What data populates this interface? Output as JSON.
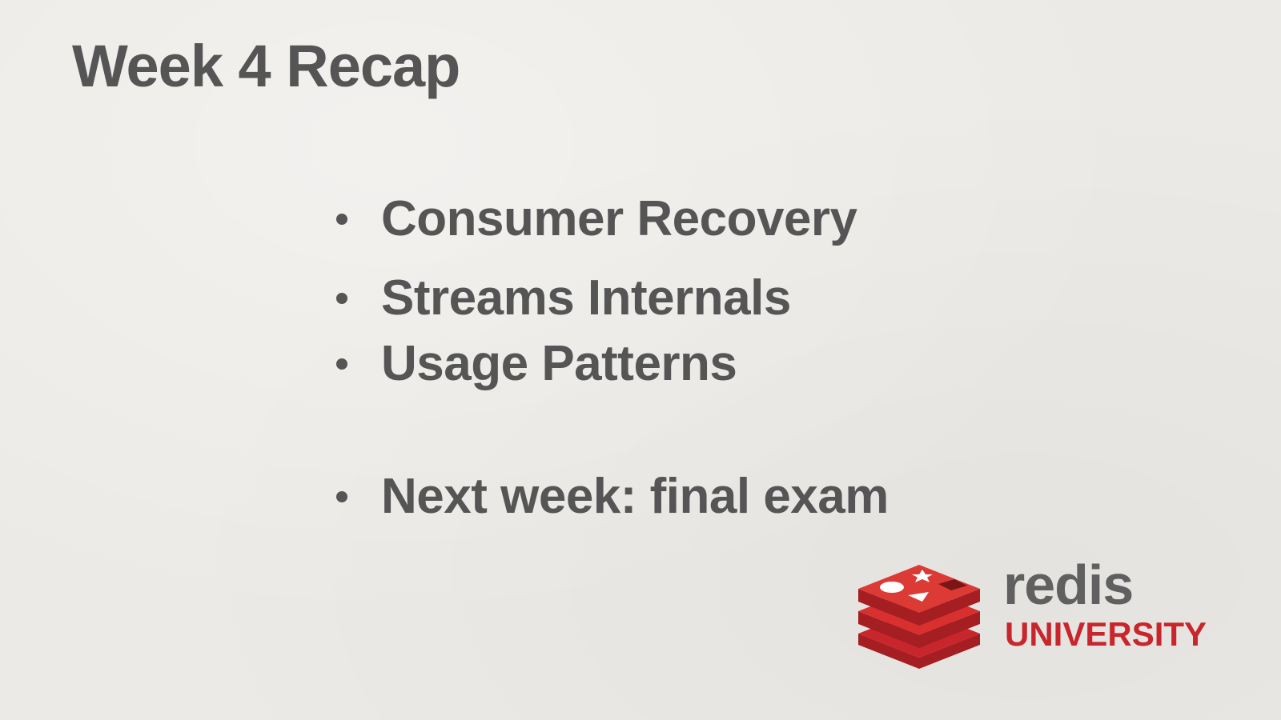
{
  "slide": {
    "title": "Week 4 Recap",
    "bullets": [
      "Consumer Recovery",
      "Streams Internals",
      "Usage Patterns",
      "Next week: final exam"
    ]
  },
  "logo": {
    "wordmark": "redis",
    "subtitle": "UNIVERSITY",
    "icon": "redis-cube-icon",
    "colors": {
      "brand_red": "#c8262c",
      "wordmark_gray": "#606060"
    }
  },
  "colors": {
    "background": "#eceae6",
    "text": "#555555"
  }
}
